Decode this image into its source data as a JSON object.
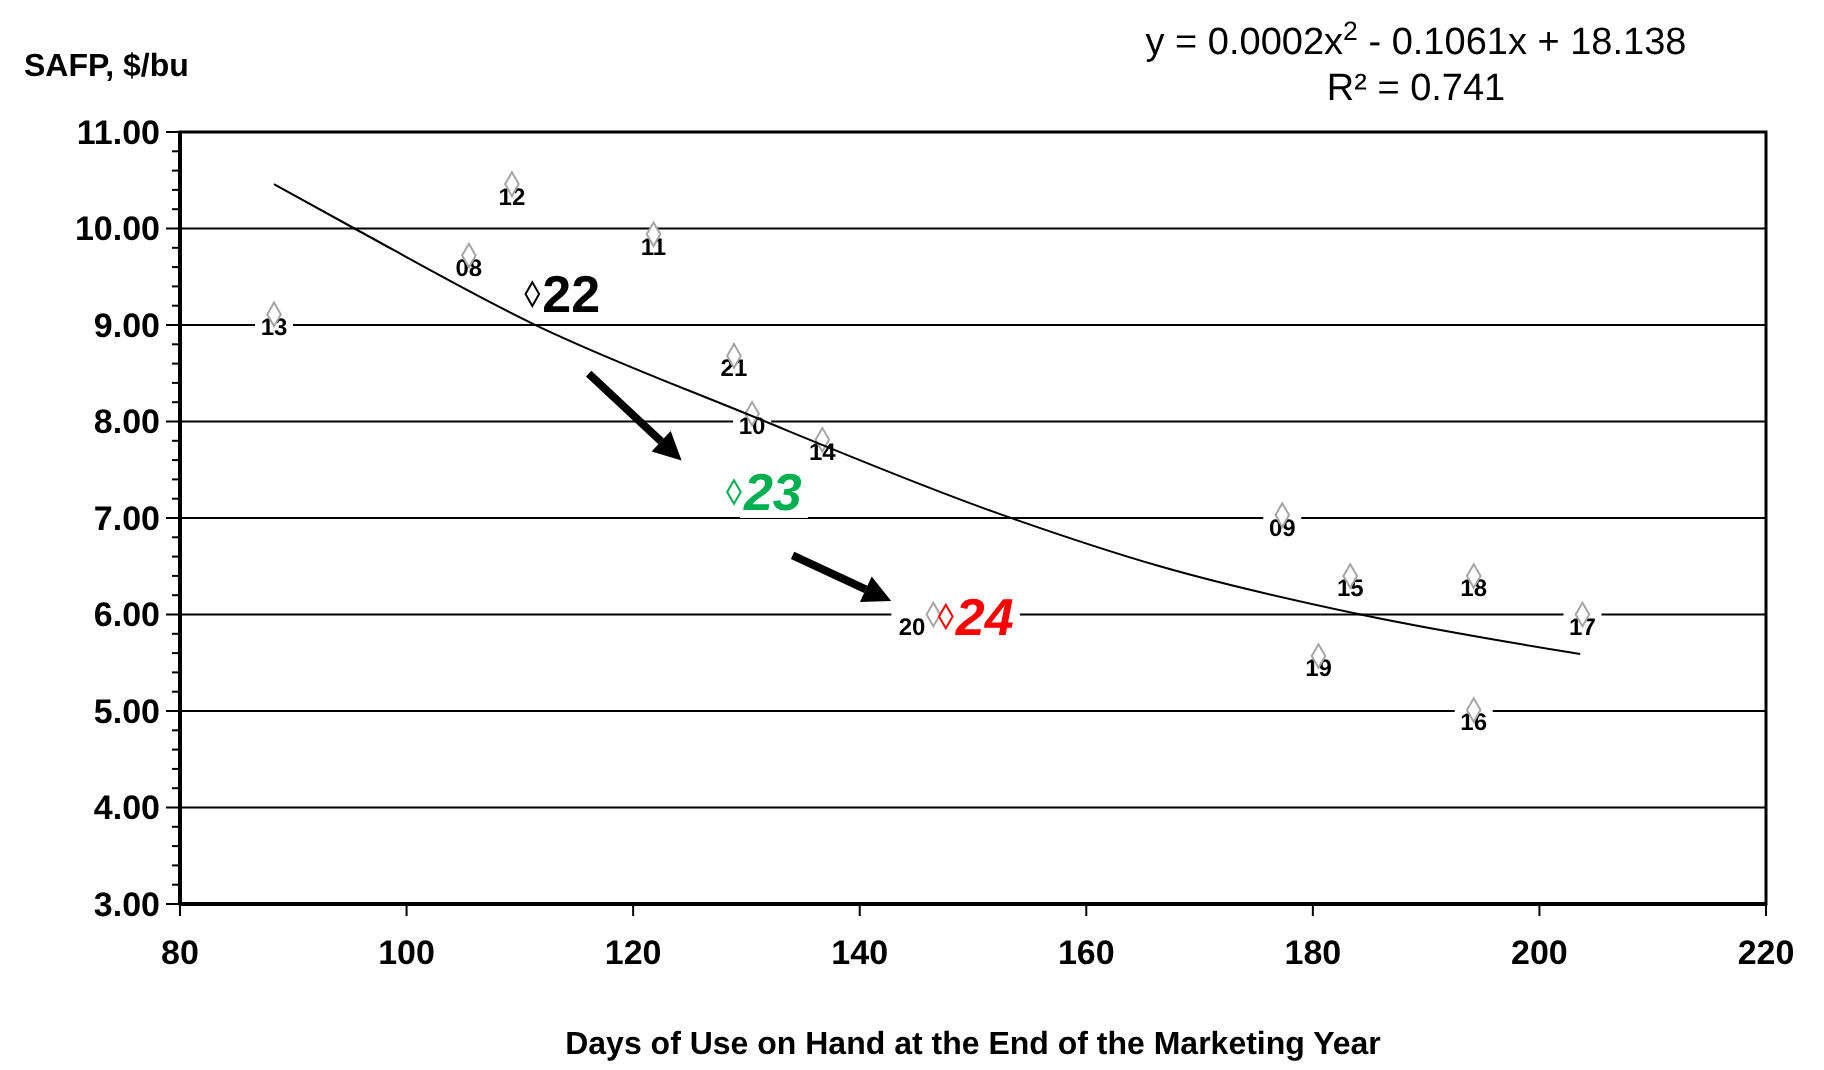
{
  "chart_data": {
    "type": "scatter",
    "ylabel": "SAFP, $/bu",
    "xlabel": "Days of Use on Hand at the End of the Marketing Year",
    "annotations": [
      "y = 0.0002x$^{2}$ - 0.1061x + 18.138",
      "R² = 0.741",
      {
        "text": "13",
        "x": 88.3,
        "y": 9.11
      },
      {
        "text": "12",
        "x": 109.3,
        "y": 10.46
      },
      {
        "text": "08",
        "x": 105.5,
        "y": 9.72
      },
      {
        "text": "11",
        "x": 121.8,
        "y": 9.94
      },
      {
        "text": "21",
        "x": 128.9,
        "y": 8.68
      },
      {
        "text": "10",
        "x": 130.5,
        "y": 8.08
      },
      {
        "text": "14",
        "x": 136.7,
        "y": 7.81
      },
      {
        "text": "20",
        "x": 146.5,
        "y": 6.0
      },
      {
        "text": "09",
        "x": 177.3,
        "y": 7.03
      },
      {
        "text": "15",
        "x": 183.3,
        "y": 6.4
      },
      {
        "text": "18",
        "x": 194.2,
        "y": 6.4
      },
      {
        "text": "17",
        "x": 203.8,
        "y": 6.0
      },
      {
        "text": "19",
        "x": 180.5,
        "y": 5.57
      },
      {
        "text": "16",
        "x": 194.2,
        "y": 5.01
      },
      {
        "text": "22",
        "x": 111.1,
        "y": 9.32
      },
      {
        "text": "23",
        "x": 128.9,
        "y": 7.27
      },
      {
        "text": "24",
        "x": 147.6,
        "y": 5.98
      }
    ],
    "xlim": [
      80,
      220
    ],
    "xticks": [
      80,
      100,
      120,
      140,
      160,
      180,
      200,
      220
    ],
    "ylim": [
      3,
      11
    ],
    "yticks": [
      {
        "value": 3,
        "label": "3.00"
      },
      {
        "value": 3.2,
        "label": null
      },
      {
        "value": 3.4,
        "label": null
      },
      {
        "value": 3.6,
        "label": null
      },
      {
        "value": 3.8,
        "label": null
      },
      {
        "value": 4,
        "label": "4.00"
      },
      {
        "value": 4.2,
        "label": null
      },
      {
        "value": 4.4,
        "label": null
      },
      {
        "value": 4.6,
        "label": null
      },
      {
        "value": 4.8,
        "label": null
      },
      {
        "value": 5,
        "label": "5.00"
      },
      {
        "value": 5.2,
        "label": null
      },
      {
        "value": 5.4,
        "label": null
      },
      {
        "value": 5.6,
        "label": null
      },
      {
        "value": 5.8,
        "label": null
      },
      {
        "value": 6,
        "label": "6.00"
      },
      {
        "value": 6.2,
        "label": null
      },
      {
        "value": 6.4,
        "label": null
      },
      {
        "value": 6.6,
        "label": null
      },
      {
        "value": 6.8,
        "label": null
      },
      {
        "value": 7,
        "label": "7.00"
      },
      {
        "value": 7.2,
        "label": null
      },
      {
        "value": 7.4,
        "label": null
      },
      {
        "value": 7.6,
        "label": null
      },
      {
        "value": 7.8,
        "label": null
      },
      {
        "value": 8,
        "label": "8.00"
      },
      {
        "value": 8.2,
        "label": null
      },
      {
        "value": 8.4,
        "label": null
      },
      {
        "value": 8.6,
        "label": null
      },
      {
        "value": 8.8,
        "label": null
      },
      {
        "value": 9,
        "label": "9.00"
      },
      {
        "value": 9.2,
        "label": null
      },
      {
        "value": 9.4,
        "label": null
      },
      {
        "value": 9.6,
        "label": null
      },
      {
        "value": 9.8,
        "label": null
      },
      {
        "value": 10,
        "label": "10.00"
      },
      {
        "value": 10.2,
        "label": null
      },
      {
        "value": 10.4,
        "label": null
      },
      {
        "value": 10.6,
        "label": null
      },
      {
        "value": 10.8,
        "label": null
      },
      {
        "value": 11,
        "label": "11.00"
      }
    ],
    "grid": "y",
    "marker": "diamond",
    "series": [
      {
        "color": "#a6a6a6",
        "x": [
          88.3,
          109.3,
          105.5,
          121.8,
          128.9,
          130.5,
          136.7,
          146.5,
          177.3,
          183.3,
          194.2,
          203.8,
          180.5,
          194.2
        ],
        "values": [
          9.11,
          10.46,
          9.72,
          9.94,
          8.68,
          8.08,
          7.81,
          6.0,
          7.03,
          6.4,
          6.4,
          6.0,
          5.57,
          5.01
        ]
      },
      {
        "color": "#000000",
        "x": [
          111.1
        ],
        "values": [
          9.32
        ]
      },
      {
        "color": "#00b050",
        "x": [
          128.9
        ],
        "values": [
          7.27
        ]
      },
      {
        "color": "#ff0000",
        "x": [
          147.6
        ],
        "values": [
          5.98
        ]
      },
      {
        "type": "line",
        "color": "#000000",
        "marker": "none",
        "line_style": "solid",
        "x": [
          88.3,
          95.4,
          111.2,
          130,
          152.4,
          166.5,
          184.2,
          203.6
        ],
        "values": [
          10.46,
          10.0,
          9.01,
          8.08,
          7.04,
          6.5,
          6.0,
          5.59
        ]
      }
    ]
  }
}
